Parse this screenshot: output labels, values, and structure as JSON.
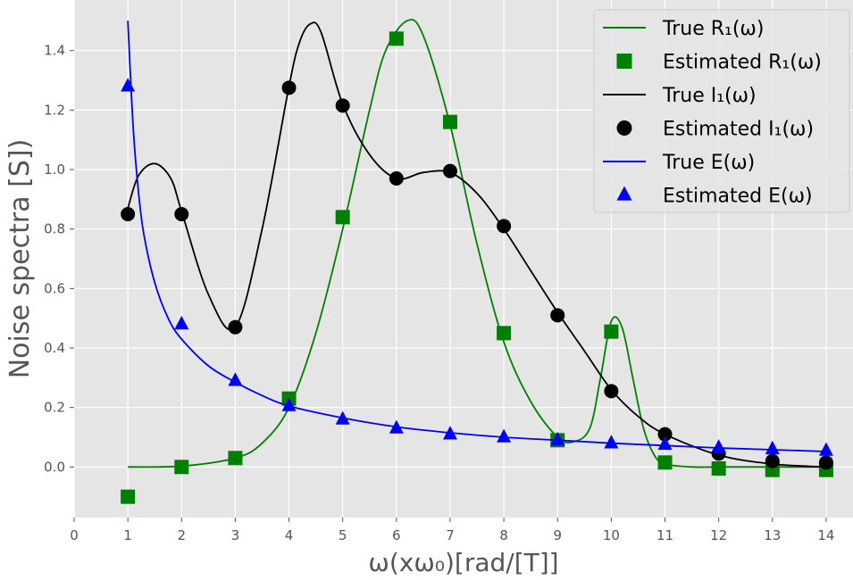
{
  "chart_data": {
    "type": "line",
    "title": "",
    "xlabel": "ω(xω₀)[rad/[T]]",
    "ylabel": "Noise spectra [S])",
    "xlim": [
      0,
      14.5
    ],
    "ylim": [
      -0.17,
      1.57
    ],
    "xticks": [
      0,
      1,
      2,
      3,
      4,
      5,
      6,
      7,
      8,
      9,
      10,
      11,
      12,
      13,
      14
    ],
    "yticks": [
      0.0,
      0.2,
      0.4,
      0.6,
      0.8,
      1.0,
      1.2,
      1.4
    ],
    "ytick_labels": [
      "0.0",
      "0.2",
      "0.4",
      "0.6",
      "0.8",
      "1.0",
      "1.2",
      "1.4"
    ],
    "grid": true,
    "legend_position": "top-right",
    "series": [
      {
        "name": "True R₁(ω)",
        "kind": "line",
        "color": "#008000",
        "x": [
          1,
          2,
          3,
          3.5,
          4,
          4.5,
          5,
          5.5,
          5.8,
          6.2,
          6.5,
          7,
          7.5,
          8,
          8.5,
          9,
          9.3,
          9.6,
          9.8,
          10,
          10.2,
          10.4,
          10.6,
          10.8,
          11,
          11.5,
          12,
          13,
          14
        ],
        "y": [
          0.0,
          0.003,
          0.03,
          0.08,
          0.2,
          0.45,
          0.8,
          1.2,
          1.4,
          1.5,
          1.45,
          1.15,
          0.75,
          0.42,
          0.22,
          0.1,
          0.085,
          0.13,
          0.3,
          0.49,
          0.47,
          0.3,
          0.13,
          0.04,
          0.01,
          0.0,
          0.0,
          0.0,
          0.0
        ]
      },
      {
        "name": "Estimated R₁(ω)",
        "kind": "marker",
        "marker": "square",
        "color": "#008000",
        "x": [
          1,
          2,
          3,
          4,
          5,
          6,
          7,
          8,
          9,
          10,
          11,
          12,
          13,
          14
        ],
        "y": [
          -0.1,
          0.0,
          0.03,
          0.23,
          0.84,
          1.44,
          1.16,
          0.45,
          0.09,
          0.455,
          0.015,
          -0.005,
          -0.01,
          -0.01
        ]
      },
      {
        "name": "True I₁(ω)",
        "kind": "line",
        "color": "#000000",
        "x": [
          1,
          1.2,
          1.5,
          1.8,
          2,
          2.5,
          3,
          3.5,
          4,
          4.2,
          4.4,
          4.6,
          5,
          5.5,
          6,
          6.5,
          7,
          7.5,
          8,
          8.5,
          9,
          9.5,
          10,
          10.5,
          11,
          12,
          13,
          14
        ],
        "y": [
          0.87,
          0.98,
          1.02,
          0.97,
          0.86,
          0.58,
          0.47,
          0.8,
          1.28,
          1.43,
          1.49,
          1.46,
          1.22,
          1.05,
          0.97,
          0.99,
          0.99,
          0.92,
          0.8,
          0.66,
          0.52,
          0.39,
          0.26,
          0.17,
          0.11,
          0.04,
          0.01,
          0.0
        ]
      },
      {
        "name": "Estimated I₁(ω)",
        "kind": "marker",
        "marker": "circle",
        "color": "#000000",
        "x": [
          1,
          2,
          3,
          4,
          5,
          6,
          7,
          8,
          9,
          10,
          11,
          12,
          13,
          14
        ],
        "y": [
          0.85,
          0.85,
          0.47,
          1.275,
          1.215,
          0.97,
          0.995,
          0.81,
          0.51,
          0.255,
          0.11,
          0.045,
          0.02,
          0.015
        ]
      },
      {
        "name": "True E(ω)",
        "kind": "line",
        "color": "#0000ff",
        "x": [
          1,
          1.1,
          1.2,
          1.3,
          1.5,
          1.75,
          2,
          2.5,
          3,
          3.5,
          4,
          5,
          6,
          7,
          8,
          9,
          10,
          11,
          12,
          13,
          14
        ],
        "y": [
          1.5,
          1.14,
          0.92,
          0.78,
          0.62,
          0.5,
          0.43,
          0.34,
          0.285,
          0.24,
          0.205,
          0.165,
          0.135,
          0.115,
          0.1,
          0.09,
          0.08,
          0.072,
          0.064,
          0.058,
          0.052
        ]
      },
      {
        "name": "Estimated E(ω)",
        "kind": "marker",
        "marker": "triangle",
        "color": "#0000ff",
        "x": [
          1,
          2,
          3,
          4,
          5,
          6,
          7,
          8,
          9,
          10,
          11,
          12,
          13,
          14
        ],
        "y": [
          1.28,
          0.48,
          0.29,
          0.205,
          0.16,
          0.13,
          0.11,
          0.1,
          0.09,
          0.08,
          0.075,
          0.065,
          0.06,
          0.055
        ]
      }
    ]
  }
}
